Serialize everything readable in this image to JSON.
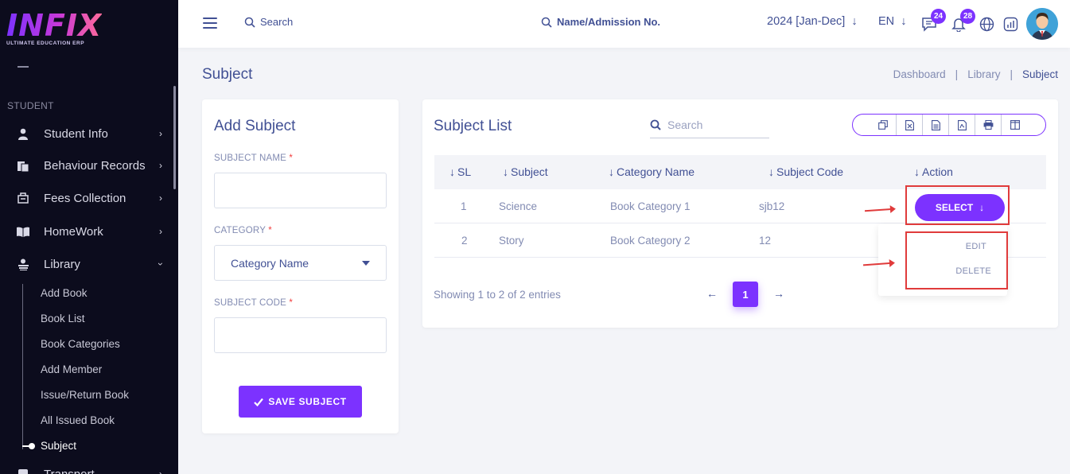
{
  "brand": {
    "name": "INFIX",
    "tagline": "ULTIMATE EDUCATION ERP"
  },
  "sidebar": {
    "section": "STUDENT",
    "items": [
      {
        "label": "Student Info",
        "icon": "student-icon"
      },
      {
        "label": "Behaviour Records",
        "icon": "records-icon"
      },
      {
        "label": "Fees Collection",
        "icon": "fees-icon"
      },
      {
        "label": "HomeWork",
        "icon": "book-open-icon"
      },
      {
        "label": "Library",
        "icon": "library-icon"
      },
      {
        "label": "Transport",
        "icon": "bus-icon"
      }
    ],
    "library_sub": [
      "Add Book",
      "Book List",
      "Book Categories",
      "Add Member",
      "Issue/Return Book",
      "All Issued Book",
      "Subject"
    ]
  },
  "topbar": {
    "search_label": "Search",
    "admission_label": "Name/Admission No.",
    "year": "2024 [Jan-Dec]",
    "lang": "EN",
    "messages_count": "24",
    "notifications_count": "28"
  },
  "page": {
    "title": "Subject",
    "breadcrumb": [
      "Dashboard",
      "Library",
      "Subject"
    ]
  },
  "add_subject": {
    "title": "Add Subject",
    "subject_name_label": "SUBJECT NAME",
    "category_label": "CATEGORY",
    "category_placeholder": "Category Name",
    "subject_code_label": "SUBJECT CODE",
    "required_mark": "*",
    "save_label": "SAVE SUBJECT"
  },
  "subject_list": {
    "title": "Subject List",
    "search_placeholder": "Search",
    "columns": [
      "SL",
      "Subject",
      "Category Name",
      "Subject Code",
      "Action"
    ],
    "rows": [
      {
        "sl": "1",
        "subject": "Science",
        "category": "Book Category 1",
        "code": "sjb12"
      },
      {
        "sl": "2",
        "subject": "Story",
        "category": "Book Category 2",
        "code": "12"
      }
    ],
    "select_label": "SELECT",
    "action_menu": [
      "EDIT",
      "DELETE"
    ],
    "showing": "Showing 1 to 2 of 2 entries",
    "current_page": "1"
  },
  "colors": {
    "accent": "#7c32ff",
    "primary_text": "#415094",
    "highlight": "#e03b3b"
  }
}
